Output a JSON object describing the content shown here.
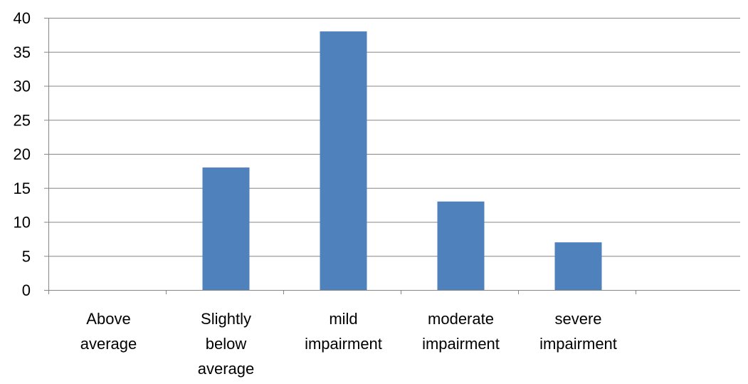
{
  "chart_data": {
    "type": "bar",
    "categories": [
      [
        "Above",
        "average"
      ],
      [
        "Slightly",
        "below",
        "average"
      ],
      [
        "mild",
        "impairment"
      ],
      [
        "moderate",
        "impairment"
      ],
      [
        "severe",
        "impairment"
      ]
    ],
    "values": [
      0,
      18,
      38,
      13,
      7
    ],
    "ylim": [
      0,
      40
    ],
    "yticks": [
      0,
      5,
      10,
      15,
      20,
      25,
      30,
      35,
      40
    ],
    "grid": true,
    "bar_color": "#4F81BD",
    "title": "",
    "xlabel": "",
    "ylabel": ""
  }
}
